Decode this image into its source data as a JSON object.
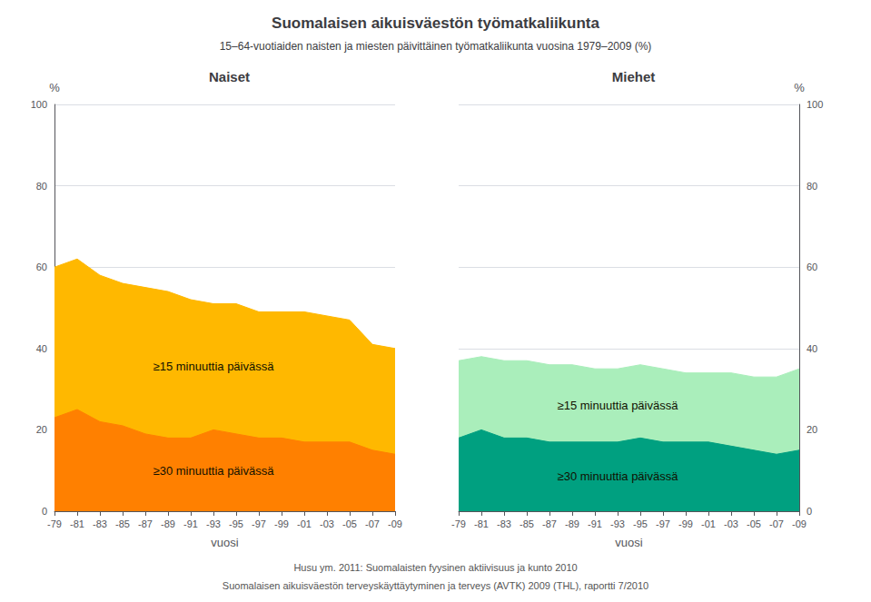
{
  "title": "Suomalaisen aikuisväestön työmatkaliikunta",
  "subtitle": "15–64-vuotiaiden naisten ja miesten päivittäinen työmatkaliikunta vuosina 1979–2009 (%)",
  "annotations": [
    "Husu ym. 2011: Suomalaisten fyysinen aktiivisuus ja kunto 2010",
    "Suomalaisen aikuisväestön terveyskäyttäytyminen ja terveys (AVTK) 2009 (THL), raportti 7/2010"
  ],
  "chart_data": [
    {
      "type": "area",
      "title": "Naiset",
      "xlabel": "vuosi",
      "ylabel": "%",
      "categories": [
        "-79",
        "-81",
        "-83",
        "-85",
        "-87",
        "-89",
        "-91",
        "-93",
        "-95",
        "-97",
        "-99",
        "-01",
        "-03",
        "-05",
        "-07",
        "-09"
      ],
      "series": [
        {
          "name": "≥15 minuuttia päivässä",
          "color": "#FFB800",
          "values": [
            60,
            62,
            58,
            56,
            55,
            54,
            52,
            51,
            51,
            49,
            49,
            49,
            48,
            47,
            41,
            40
          ]
        },
        {
          "name": "≥30 minuuttia päivässä",
          "color": "#FF8000",
          "values": [
            23,
            25,
            22,
            21,
            19,
            18,
            18,
            20,
            19,
            18,
            18,
            17,
            17,
            17,
            15,
            14
          ]
        }
      ],
      "ylim": [
        0,
        100
      ],
      "yticks": [
        0,
        20,
        40,
        60,
        80,
        100
      ],
      "grid": true,
      "stacked": false
    },
    {
      "type": "area",
      "title": "Miehet",
      "xlabel": "vuosi",
      "ylabel": "%",
      "categories": [
        "-79",
        "-81",
        "-83",
        "-85",
        "-87",
        "-89",
        "-91",
        "-93",
        "-95",
        "-97",
        "-99",
        "-01",
        "-03",
        "-05",
        "-07",
        "-09"
      ],
      "series": [
        {
          "name": "≥15 minuuttia päivässä",
          "color": "#AAEEBB",
          "values": [
            37,
            38,
            37,
            37,
            36,
            36,
            35,
            35,
            36,
            35,
            34,
            34,
            34,
            33,
            33,
            35
          ]
        },
        {
          "name": "≥30 minuuttia päivässä",
          "color": "#00A080",
          "values": [
            18,
            20,
            18,
            18,
            17,
            17,
            17,
            17,
            18,
            17,
            17,
            17,
            16,
            15,
            14,
            15
          ]
        }
      ],
      "ylim": [
        0,
        100
      ],
      "yticks": [
        0,
        20,
        40,
        60,
        80,
        100
      ],
      "grid": true,
      "stacked": false
    }
  ]
}
